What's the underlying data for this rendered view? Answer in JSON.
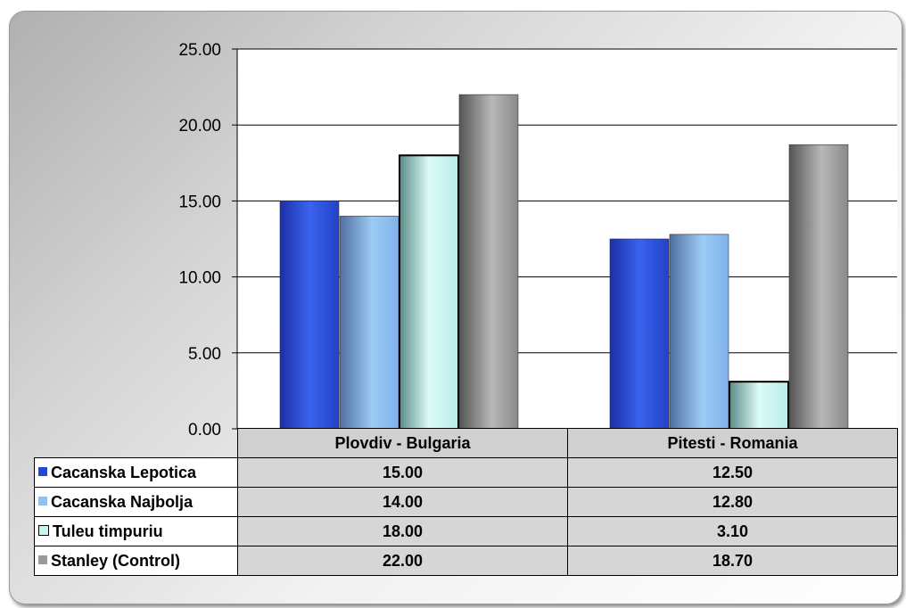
{
  "chart_data": {
    "type": "bar",
    "categories": [
      "Plovdiv - Bulgaria",
      "Pitesti - Romania"
    ],
    "series": [
      {
        "name": "Cacanska Lepotica",
        "values": [
          15.0,
          12.5
        ],
        "color": "#2547d8"
      },
      {
        "name": "Cacanska Najbolja",
        "values": [
          14.0,
          12.8
        ],
        "color": "#8fc0f2"
      },
      {
        "name": "Tuleu timpuriu",
        "values": [
          18.0,
          3.1
        ],
        "color": "#c9f3f0"
      },
      {
        "name": "Stanley (Control)",
        "values": [
          22.0,
          18.7
        ],
        "color": "#9a9a9a"
      }
    ],
    "value_labels": [
      [
        "15.00",
        "12.50"
      ],
      [
        "14.00",
        "12.80"
      ],
      [
        "18.00",
        "3.10"
      ],
      [
        "22.00",
        "18.70"
      ]
    ],
    "ylim": [
      0,
      25
    ],
    "yticks": [
      "0.00",
      "5.00",
      "10.00",
      "15.00",
      "20.00",
      "25.00"
    ],
    "grid": true,
    "data_table": true,
    "title": "",
    "xlabel": "",
    "ylabel": ""
  }
}
